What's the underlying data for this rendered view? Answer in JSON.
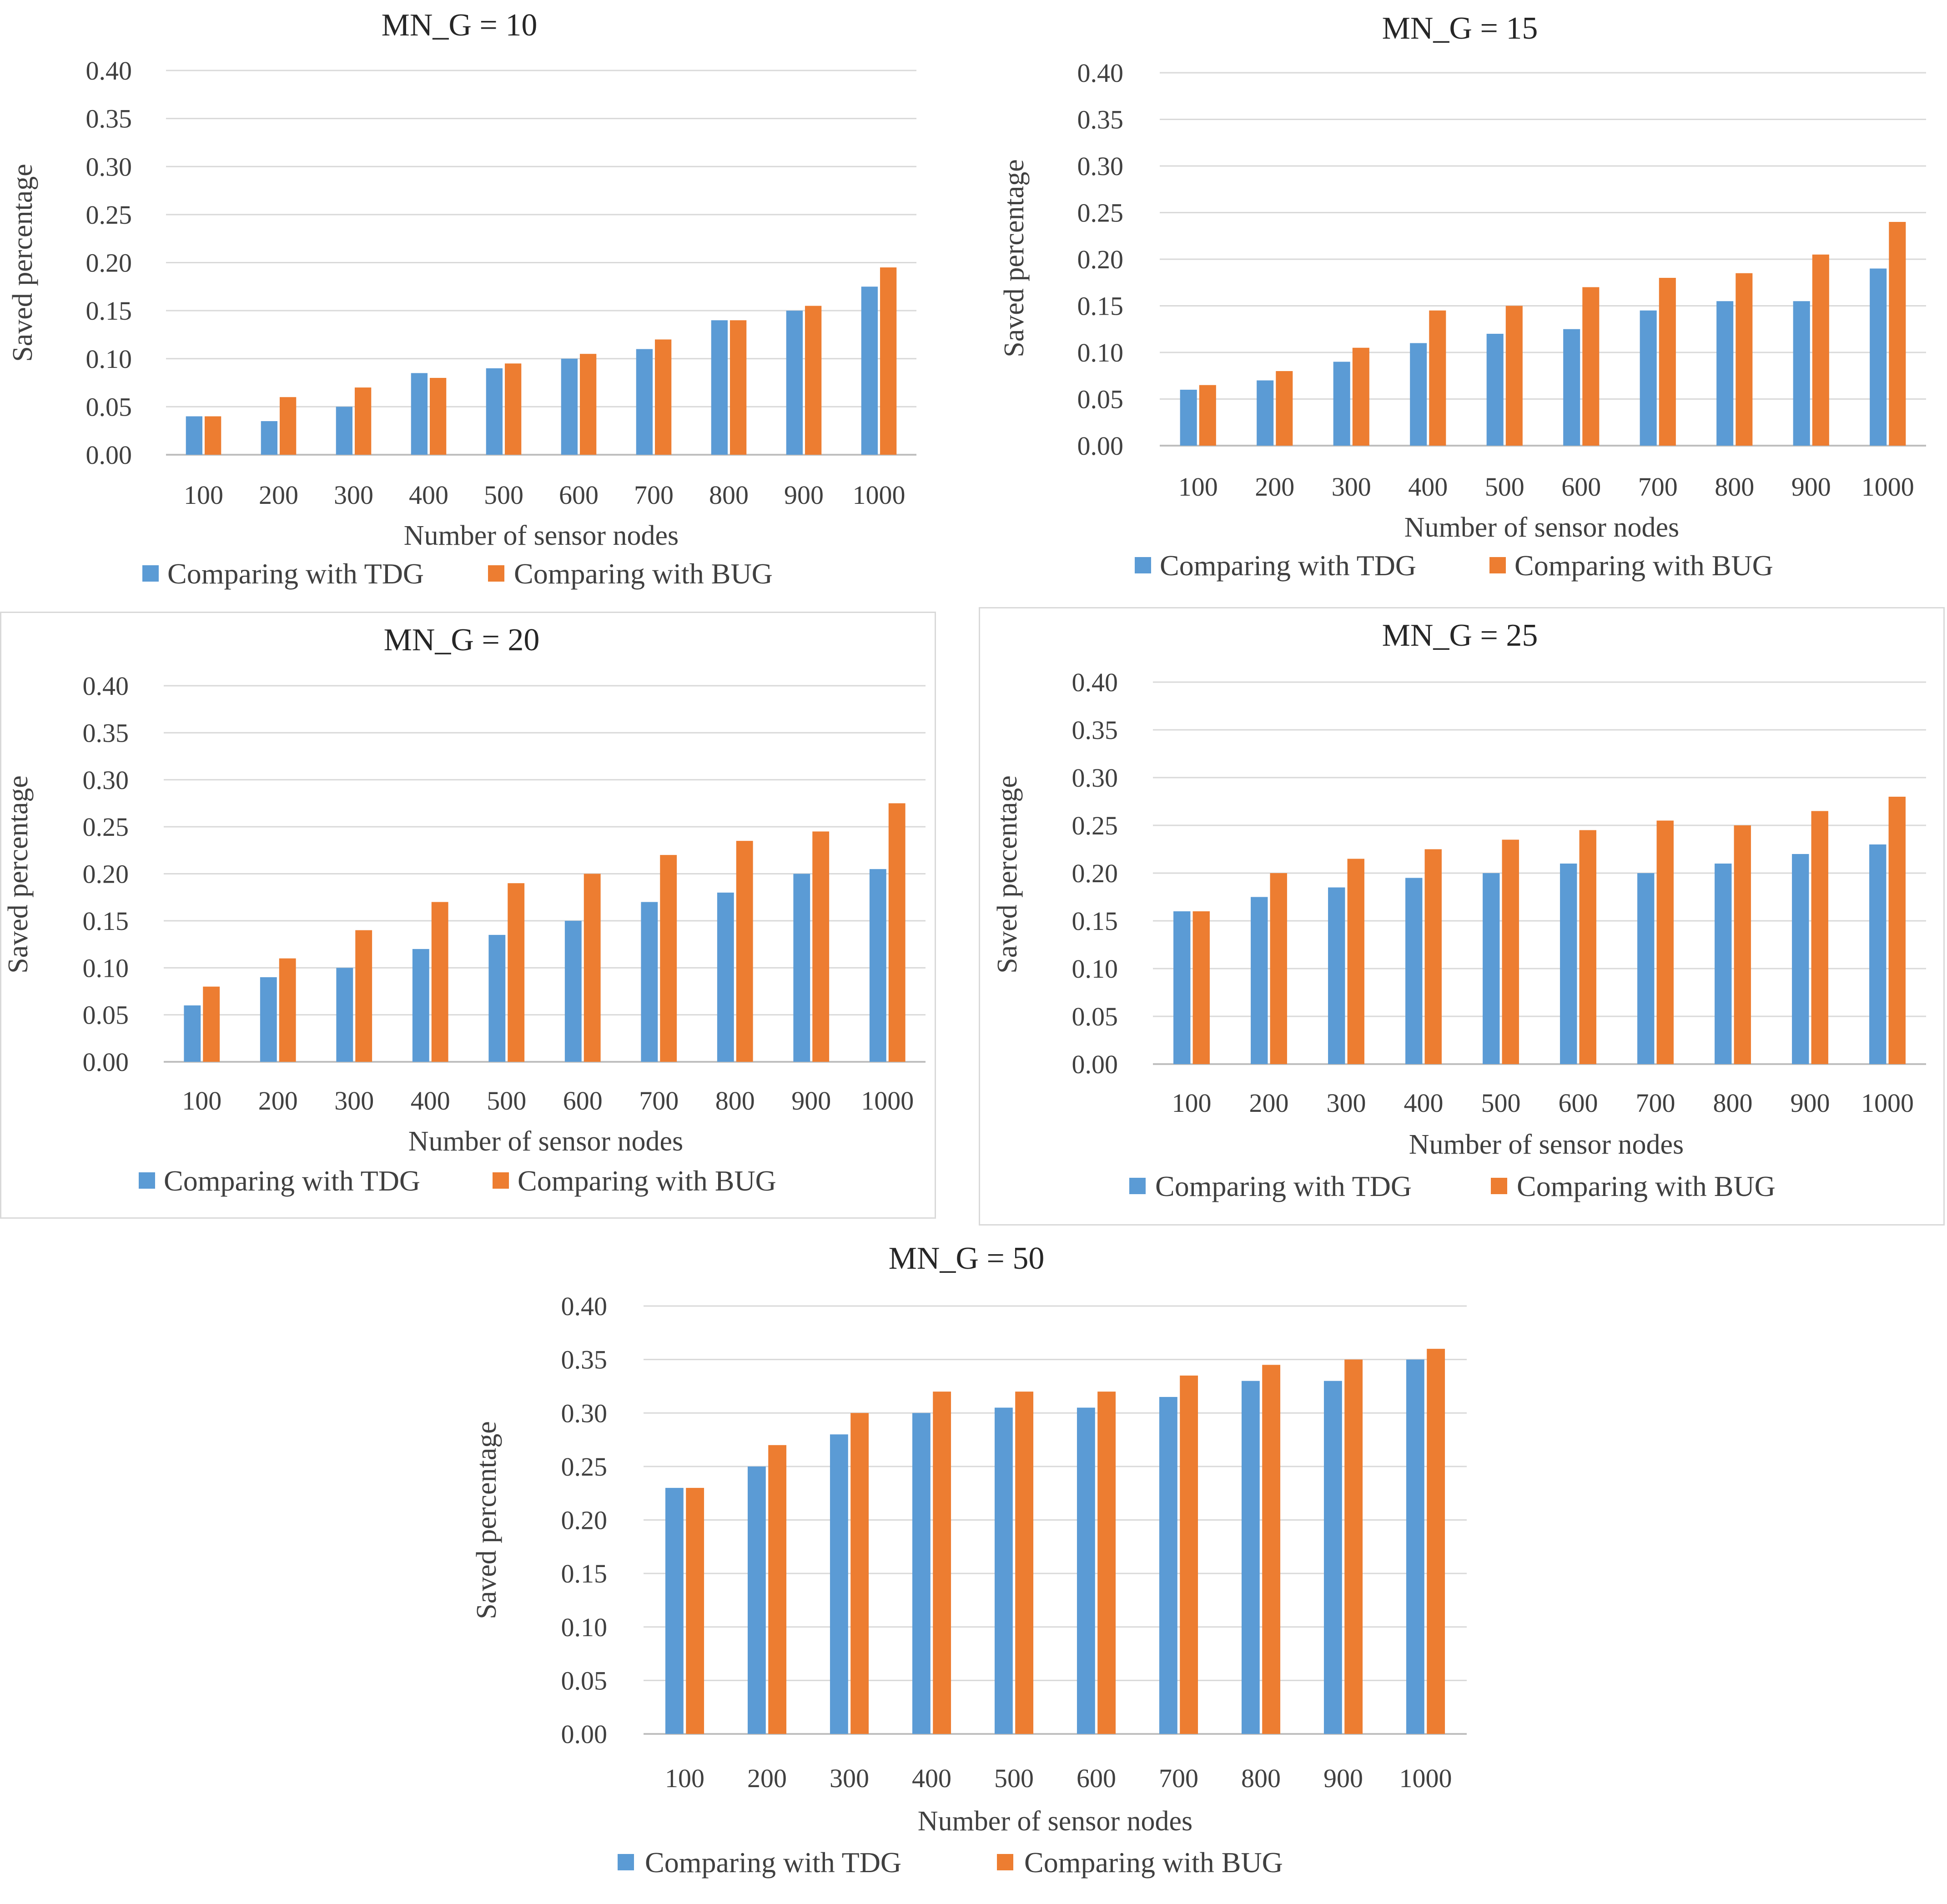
{
  "chart_data": [
    {
      "type": "bar",
      "title": "MN_G = 10",
      "xlabel": "Number of sensor nodes",
      "ylabel": "Saved percentage",
      "ylim": [
        0,
        0.4
      ],
      "yticks": [
        "0.00",
        "0.05",
        "0.10",
        "0.15",
        "0.20",
        "0.25",
        "0.30",
        "0.35",
        "0.40"
      ],
      "categories": [
        "100",
        "200",
        "300",
        "400",
        "500",
        "600",
        "700",
        "800",
        "900",
        "1000"
      ],
      "grid": true,
      "legend_position": "bottom",
      "series": [
        {
          "name": "Comparing with TDG",
          "color": "#5b9bd5",
          "values": [
            0.04,
            0.035,
            0.05,
            0.085,
            0.09,
            0.1,
            0.11,
            0.14,
            0.15,
            0.175
          ]
        },
        {
          "name": "Comparing with BUG",
          "color": "#ed7d31",
          "values": [
            0.04,
            0.06,
            0.07,
            0.08,
            0.095,
            0.105,
            0.12,
            0.14,
            0.155,
            0.195
          ]
        }
      ]
    },
    {
      "type": "bar",
      "title": "MN_G = 15",
      "xlabel": "Number of sensor nodes",
      "ylabel": "Saved percentage",
      "ylim": [
        0,
        0.4
      ],
      "yticks": [
        "0.00",
        "0.05",
        "0.10",
        "0.15",
        "0.20",
        "0.25",
        "0.30",
        "0.35",
        "0.40"
      ],
      "categories": [
        "100",
        "200",
        "300",
        "400",
        "500",
        "600",
        "700",
        "800",
        "900",
        "1000"
      ],
      "grid": true,
      "legend_position": "bottom",
      "series": [
        {
          "name": "Comparing with TDG",
          "color": "#5b9bd5",
          "values": [
            0.06,
            0.07,
            0.09,
            0.11,
            0.12,
            0.125,
            0.145,
            0.155,
            0.155,
            0.19
          ]
        },
        {
          "name": "Comparing with BUG",
          "color": "#ed7d31",
          "values": [
            0.065,
            0.08,
            0.105,
            0.145,
            0.15,
            0.17,
            0.18,
            0.185,
            0.205,
            0.24
          ]
        }
      ]
    },
    {
      "type": "bar",
      "title": "MN_G = 20",
      "xlabel": "Number of sensor nodes",
      "ylabel": "Saved percentage",
      "ylim": [
        0,
        0.4
      ],
      "yticks": [
        "0.00",
        "0.05",
        "0.10",
        "0.15",
        "0.20",
        "0.25",
        "0.30",
        "0.35",
        "0.40"
      ],
      "categories": [
        "100",
        "200",
        "300",
        "400",
        "500",
        "600",
        "700",
        "800",
        "900",
        "1000"
      ],
      "grid": true,
      "legend_position": "bottom",
      "series": [
        {
          "name": "Comparing with TDG",
          "color": "#5b9bd5",
          "values": [
            0.06,
            0.09,
            0.1,
            0.12,
            0.135,
            0.15,
            0.17,
            0.18,
            0.2,
            0.205
          ]
        },
        {
          "name": "Comparing with BUG",
          "color": "#ed7d31",
          "values": [
            0.08,
            0.11,
            0.14,
            0.17,
            0.19,
            0.2,
            0.22,
            0.235,
            0.245,
            0.275
          ]
        }
      ]
    },
    {
      "type": "bar",
      "title": "MN_G = 25",
      "xlabel": "Number of sensor nodes",
      "ylabel": "Saved percentage",
      "ylim": [
        0,
        0.4
      ],
      "yticks": [
        "0.00",
        "0.05",
        "0.10",
        "0.15",
        "0.20",
        "0.25",
        "0.30",
        "0.35",
        "0.40"
      ],
      "categories": [
        "100",
        "200",
        "300",
        "400",
        "500",
        "600",
        "700",
        "800",
        "900",
        "1000"
      ],
      "grid": true,
      "legend_position": "bottom",
      "series": [
        {
          "name": "Comparing with TDG",
          "color": "#5b9bd5",
          "values": [
            0.16,
            0.175,
            0.185,
            0.195,
            0.2,
            0.21,
            0.2,
            0.21,
            0.22,
            0.23
          ]
        },
        {
          "name": "Comparing with BUG",
          "color": "#ed7d31",
          "values": [
            0.16,
            0.2,
            0.215,
            0.225,
            0.235,
            0.245,
            0.255,
            0.25,
            0.265,
            0.28
          ]
        }
      ]
    },
    {
      "type": "bar",
      "title": "MN_G = 50",
      "xlabel": "Number of sensor nodes",
      "ylabel": "Saved percentage",
      "ylim": [
        0,
        0.4
      ],
      "yticks": [
        "0.00",
        "0.05",
        "0.10",
        "0.15",
        "0.20",
        "0.25",
        "0.30",
        "0.35",
        "0.40"
      ],
      "categories": [
        "100",
        "200",
        "300",
        "400",
        "500",
        "600",
        "700",
        "800",
        "900",
        "1000"
      ],
      "grid": true,
      "legend_position": "bottom",
      "series": [
        {
          "name": "Comparing with TDG",
          "color": "#5b9bd5",
          "values": [
            0.23,
            0.25,
            0.28,
            0.3,
            0.305,
            0.305,
            0.315,
            0.33,
            0.33,
            0.35
          ]
        },
        {
          "name": "Comparing with BUG",
          "color": "#ed7d31",
          "values": [
            0.23,
            0.27,
            0.3,
            0.32,
            0.32,
            0.32,
            0.335,
            0.345,
            0.35,
            0.36
          ]
        }
      ]
    }
  ]
}
